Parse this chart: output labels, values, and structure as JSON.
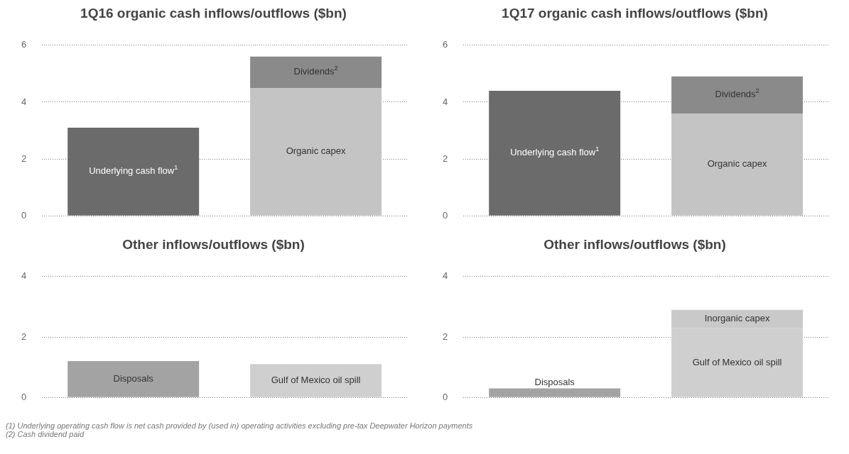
{
  "chart_data": [
    {
      "type": "bar",
      "title": "1Q16 organic cash inflows/outflows ($bn)",
      "categories": [
        null,
        null
      ],
      "stacked": true,
      "ylim": [
        0,
        6
      ],
      "yticks": [
        0,
        2,
        4,
        6
      ],
      "grid": "y",
      "tick_labels": "y",
      "legend": false,
      "series": [
        {
          "name": "Underlying cash flow$^{1}$",
          "color": "#6b6b6b",
          "values": [
            3.1,
            null
          ]
        },
        {
          "name": "Organic capex",
          "color": "#c4c4c4",
          "values": [
            null,
            4.5
          ]
        },
        {
          "name": "Dividends$^{2}$",
          "color": "#8a8a8a",
          "values": [
            null,
            1.1
          ]
        }
      ]
    },
    {
      "type": "bar",
      "title": "1Q17 organic cash inflows/outflows ($bn)",
      "categories": [
        null,
        null
      ],
      "stacked": true,
      "ylim": [
        0,
        6
      ],
      "yticks": [
        0,
        2,
        4,
        6
      ],
      "grid": "y",
      "tick_labels": "y",
      "legend": false,
      "series": [
        {
          "name": "Underlying cash flow$^{1}$",
          "color": "#6b6b6b",
          "values": [
            4.4,
            null
          ]
        },
        {
          "name": "Organic capex",
          "color": "#c4c4c4",
          "values": [
            null,
            3.6
          ]
        },
        {
          "name": "Dividends$^{2}$",
          "color": "#8a8a8a",
          "values": [
            null,
            1.3
          ]
        }
      ]
    },
    {
      "type": "bar",
      "title": "Other inflows/outflows ($bn)",
      "categories": [
        null,
        null
      ],
      "stacked": true,
      "ylim": [
        0,
        4
      ],
      "yticks": [
        0,
        2,
        4
      ],
      "grid": "y",
      "tick_labels": "y",
      "legend": false,
      "series": [
        {
          "name": "Disposals",
          "color": "#a3a3a3",
          "values": [
            1.2,
            null
          ]
        },
        {
          "name": "Gulf of Mexico oil spill",
          "color": "#cfcfcf",
          "values": [
            null,
            1.1
          ]
        }
      ],
      "annotations": [
        "(1) Underlying operating cash flow is net cash provided by (used in) operating activities excluding pre-tax Deepwater Horizon payments",
        "(2) Cash dividend paid"
      ]
    },
    {
      "type": "bar",
      "title": "Other inflows/outflows ($bn)",
      "categories": [
        null,
        null
      ],
      "stacked": true,
      "ylim": [
        0,
        4
      ],
      "yticks": [
        0,
        2,
        4
      ],
      "grid": "y",
      "tick_labels": "y",
      "legend": false,
      "series": [
        {
          "name": "Disposals",
          "color": "#a3a3a3",
          "values": [
            0.3,
            null
          ]
        },
        {
          "name": "Gulf of Mexico oil spill",
          "color": "#cfcfcf",
          "values": [
            null,
            2.3
          ]
        },
        {
          "name": "Inorganic capex",
          "color": "#c9c9c9",
          "values": [
            null,
            0.6
          ]
        }
      ]
    }
  ]
}
